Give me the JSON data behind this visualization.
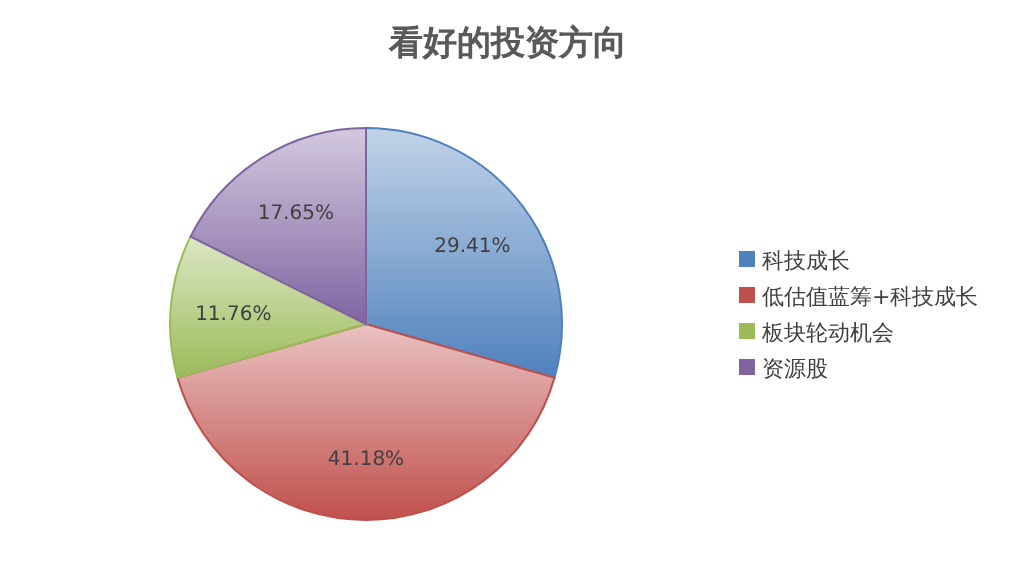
{
  "chart_data": {
    "type": "pie",
    "title": "看好的投资方向",
    "categories": [
      "科技成长",
      "低估值蓝筹+科技成长",
      "板块轮动机会",
      "资源股"
    ],
    "values": [
      29.41,
      41.18,
      11.76,
      17.65
    ],
    "colors": [
      "#4f81bd",
      "#c0504d",
      "#9bbb59",
      "#8064a2"
    ],
    "value_labels": [
      "29.41%",
      "41.18%",
      "11.76%",
      "17.65%"
    ],
    "legend": "right"
  }
}
